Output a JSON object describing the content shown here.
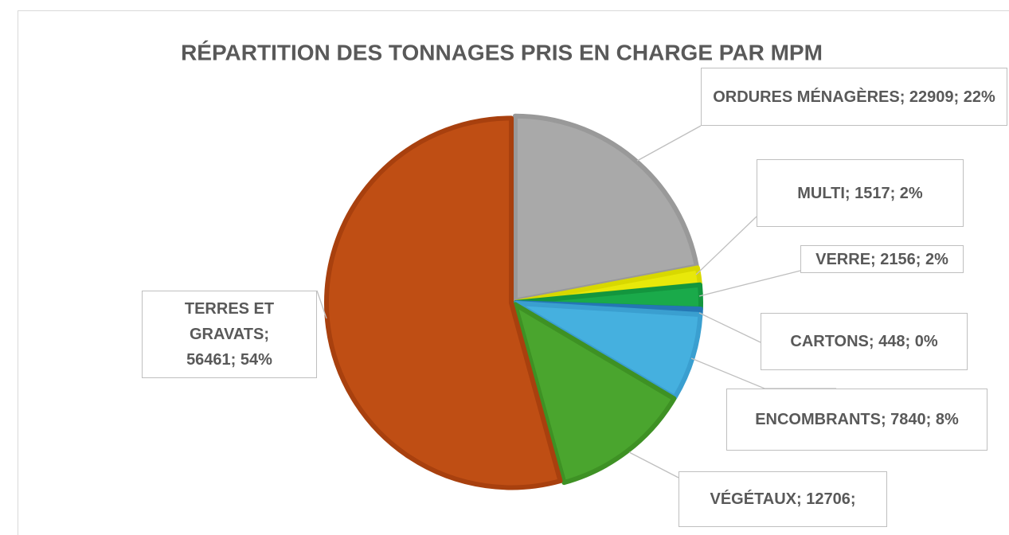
{
  "chart_data": {
    "type": "pie",
    "title": "RÉPARTITION DES TONNAGES PRIS EN CHARGE PAR MPM",
    "values": [
      22909,
      1517,
      2156,
      448,
      7840,
      12706,
      56461
    ],
    "value_labels": [
      "ORDURES MÉNAGÈRES; 22909; 22%",
      "MULTI; 1517; 2%",
      "VERRE; 2156; 2%",
      "CARTONS; 448; 0%",
      "ENCOMBRANTS; 7840; 8%",
      "VÉGÉTAUX; 12706;",
      "TERRES ET GRAVATS; 56461; 54%"
    ],
    "colors": [
      "#a9a9a9",
      "#e8e80a",
      "#1aaa4a",
      "#2e8ecf",
      "#45b0df",
      "#4aa52e",
      "#bf4e14"
    ],
    "border_colors": [
      "#999999",
      "#d8d800",
      "#13963e",
      "#2477b4",
      "#3a9fd0",
      "#3e9124",
      "#a8400e"
    ]
  }
}
